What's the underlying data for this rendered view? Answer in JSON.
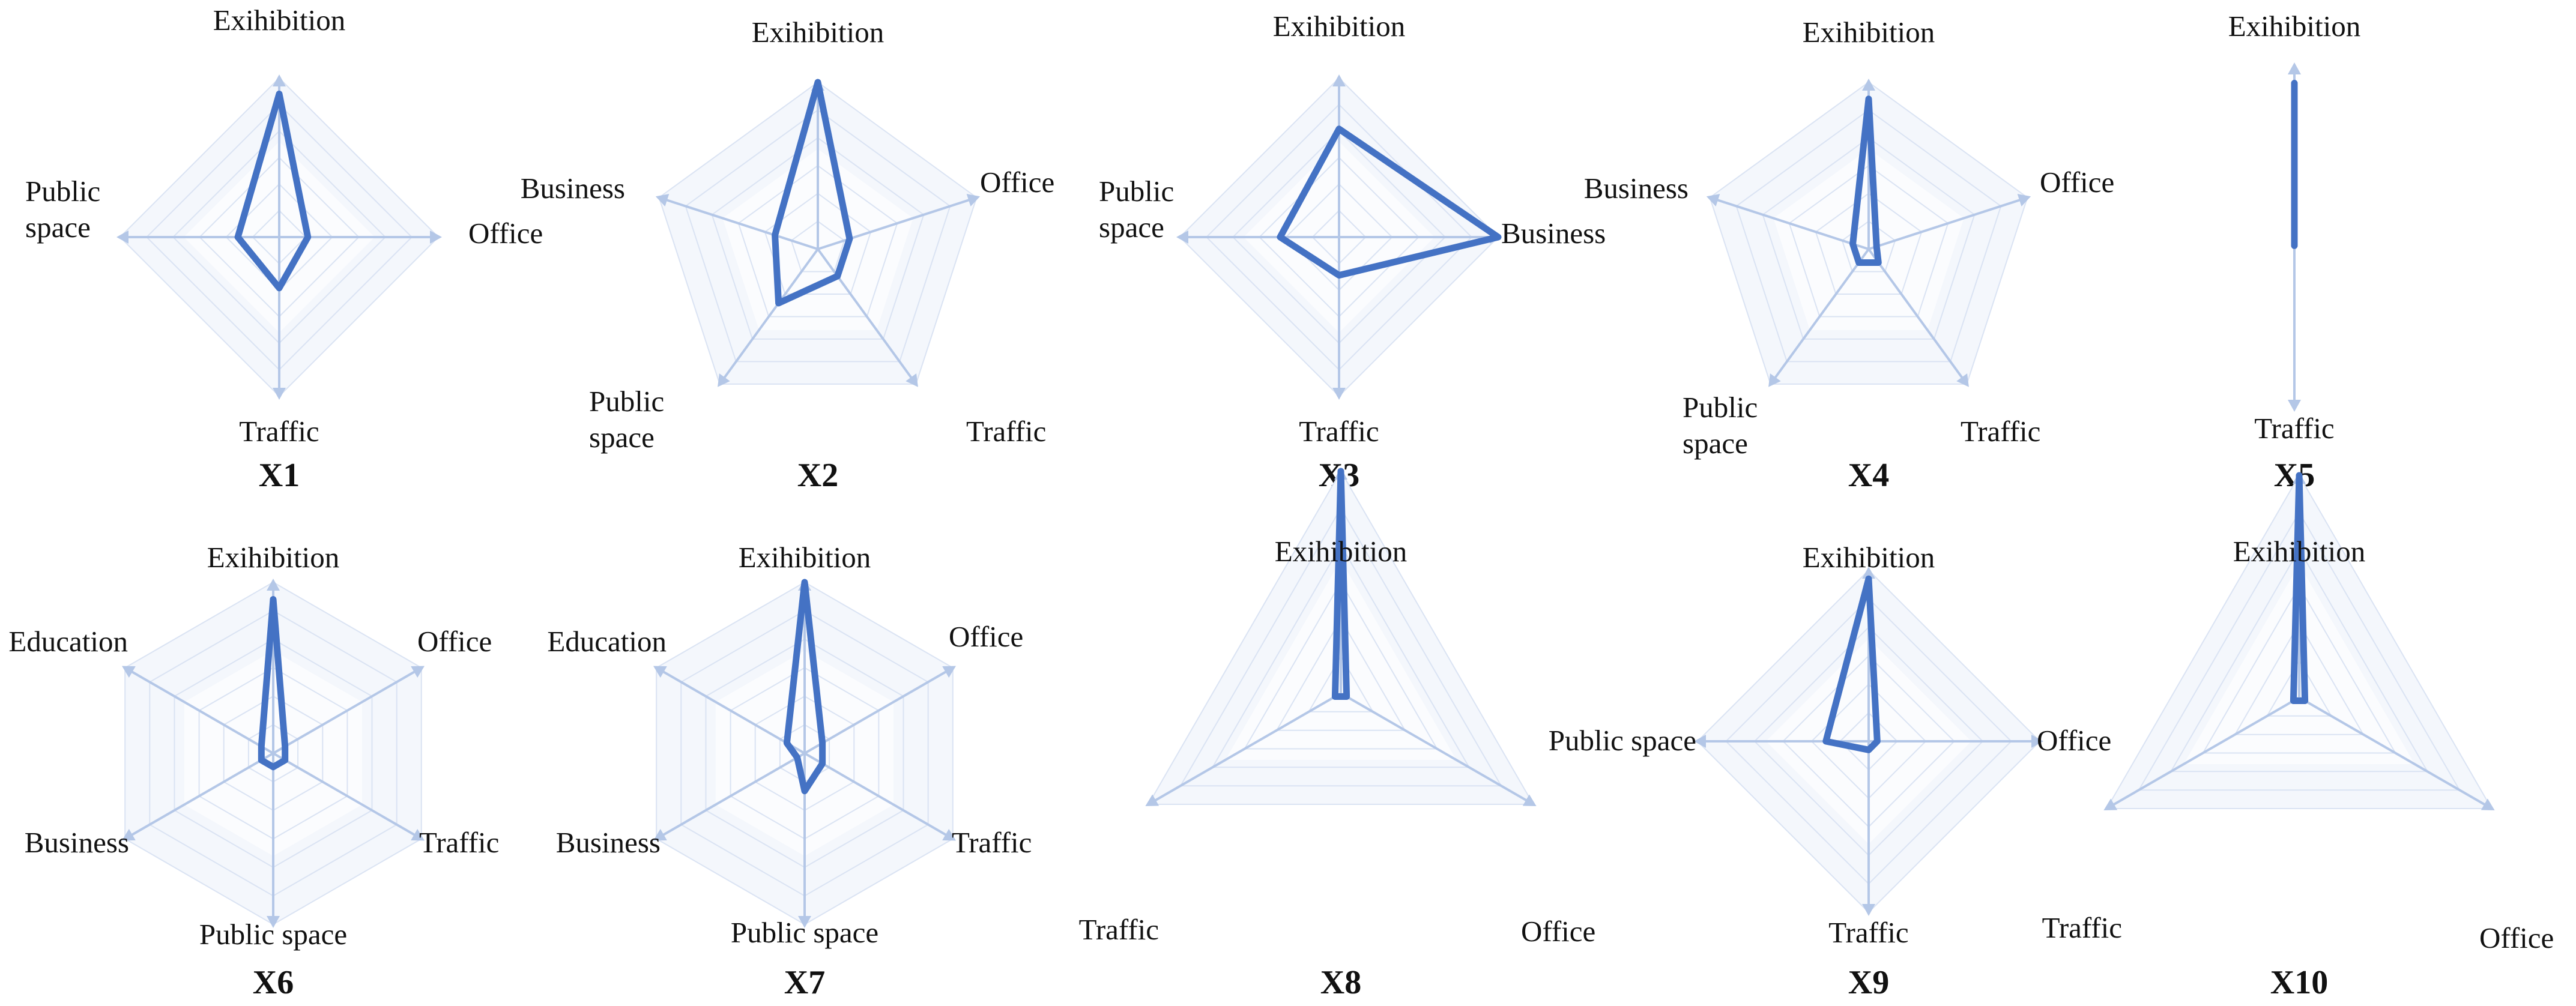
{
  "figure": {
    "colors": {
      "series": "#4472C4",
      "axis": "#B4C7E7",
      "grid": "#DAE3F3",
      "fill_outer": "#F4F7FC",
      "fill_inner": "#FBFCFE",
      "text": "#111111"
    }
  },
  "chart_data": [
    {
      "title": "X1",
      "type": "radar",
      "max": 1,
      "axes": [
        "Exihibition",
        "Office",
        "Traffic",
        "Public space"
      ],
      "values": [
        0.9,
        0.18,
        0.32,
        0.26
      ]
    },
    {
      "title": "X2",
      "type": "radar",
      "max": 1,
      "axes": [
        "Exihibition",
        "Office",
        "Traffic",
        "Public space",
        "Business"
      ],
      "values": [
        1.0,
        0.2,
        0.2,
        0.4,
        0.27
      ]
    },
    {
      "title": "X3",
      "type": "radar",
      "max": 1,
      "axes": [
        "Exihibition",
        "Business",
        "Traffic",
        "Public space"
      ],
      "values": [
        0.68,
        1.0,
        0.24,
        0.37
      ]
    },
    {
      "title": "X4",
      "type": "radar",
      "max": 1,
      "axes": [
        "Exihibition",
        "Office",
        "Traffic",
        "Public space",
        "Business"
      ],
      "values": [
        0.9,
        0.05,
        0.1,
        0.1,
        0.1
      ]
    },
    {
      "title": "X5",
      "type": "radar",
      "max": 1,
      "axes": [
        "Exihibition",
        "Traffic"
      ],
      "values": [
        0.9,
        0.05
      ]
    },
    {
      "title": "X6",
      "type": "radar",
      "max": 1,
      "axes": [
        "Exihibition",
        "Office",
        "Traffic",
        "Public space",
        "Business",
        "Education"
      ],
      "values": [
        0.9,
        0.08,
        0.08,
        0.08,
        0.08,
        0.08
      ]
    },
    {
      "title": "X7",
      "type": "radar",
      "max": 1,
      "axes": [
        "Exihibition",
        "Office",
        "Traffic",
        "Public space",
        "Business",
        "Education"
      ],
      "values": [
        1.0,
        0.12,
        0.12,
        0.22,
        0.05,
        0.12
      ]
    },
    {
      "title": "X8",
      "type": "radar",
      "max": 1,
      "axes": [
        "Exihibition",
        "Office",
        "Traffic"
      ],
      "values": [
        1.0,
        0.03,
        0.03
      ]
    },
    {
      "title": "X9",
      "type": "radar",
      "max": 1,
      "axes": [
        "Exihibition",
        "Office",
        "Traffic",
        "Public space"
      ],
      "values": [
        0.95,
        0.05,
        0.05,
        0.25
      ]
    },
    {
      "title": "X10",
      "type": "radar",
      "max": 1,
      "axes": [
        "Exihibition",
        "Office",
        "Traffic"
      ],
      "values": [
        1.0,
        0.03,
        0.03
      ]
    }
  ]
}
